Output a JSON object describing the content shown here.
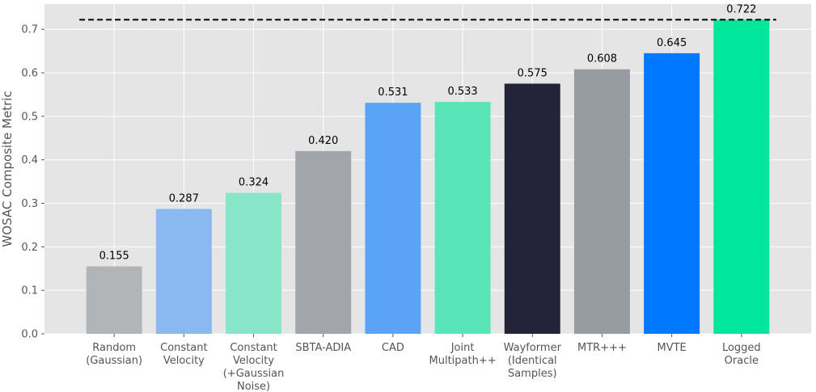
{
  "chart_data": {
    "type": "bar",
    "title": "",
    "xlabel": "",
    "ylabel": "WOSAC Composite Metric",
    "categories": [
      [
        "Random",
        "(Gaussian)"
      ],
      [
        "Constant",
        "Velocity"
      ],
      [
        "Constant",
        "Velocity",
        "(+Gaussian",
        "Noise)"
      ],
      [
        "SBTA-ADIA"
      ],
      [
        "CAD"
      ],
      [
        "Joint",
        "Multipath++"
      ],
      [
        "Wayformer",
        "(Identical",
        "Samples)"
      ],
      [
        "MTR+++"
      ],
      [
        "MVTE"
      ],
      [
        "Logged",
        "Oracle"
      ]
    ],
    "values": [
      0.155,
      0.287,
      0.324,
      0.42,
      0.531,
      0.533,
      0.575,
      0.608,
      0.645,
      0.722
    ],
    "value_labels": [
      "0.155",
      "0.287",
      "0.324",
      "0.420",
      "0.531",
      "0.533",
      "0.575",
      "0.608",
      "0.645",
      "0.722"
    ],
    "colors": [
      "#b2b5b8",
      "#8ab8f0",
      "#88e5c8",
      "#a2a6aa",
      "#5ba3f5",
      "#5ae5b8",
      "#23243a",
      "#979ca2",
      "#0078fe",
      "#00e69a"
    ],
    "reference_line": {
      "value": 0.722,
      "style": "dashed",
      "color": "#000000"
    },
    "yticks": [
      "0.0",
      "0.1",
      "0.2",
      "0.3",
      "0.4",
      "0.5",
      "0.6",
      "0.7"
    ],
    "ytick_values": [
      0,
      0.1,
      0.2,
      0.3,
      0.4,
      0.5,
      0.6,
      0.7
    ],
    "ylim": [
      0,
      0.758
    ],
    "grid": true,
    "background": "#e5e5e5"
  }
}
